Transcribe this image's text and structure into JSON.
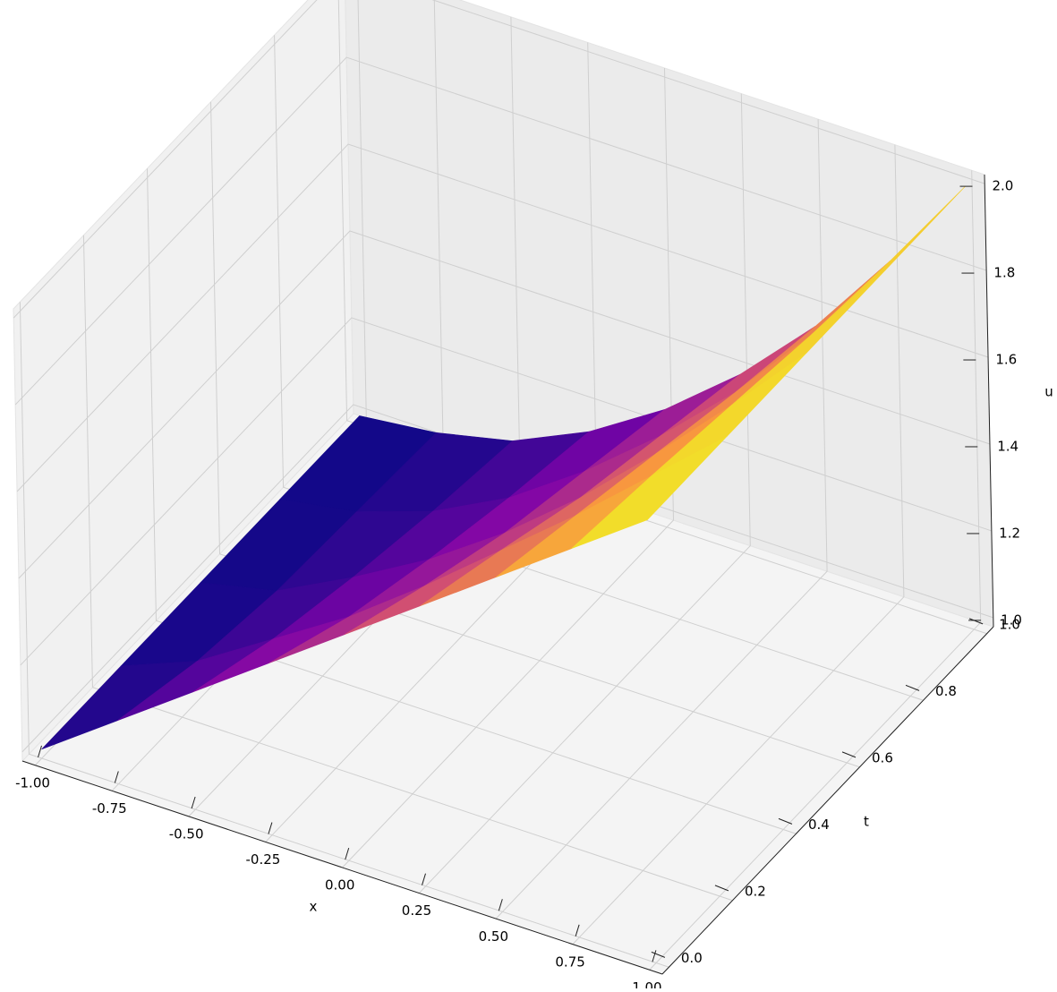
{
  "chart_data": {
    "type": "surface",
    "xlabel": "x",
    "ylabel": "t",
    "zlabel": "u",
    "x": [
      -1,
      -0.75,
      -0.5,
      -0.25,
      0,
      0.25,
      0.5,
      0.75,
      1
    ],
    "t": [
      0,
      0.25,
      0.5,
      0.75,
      1
    ],
    "values": [
      [
        1,
        1.125,
        1.25,
        1.375,
        1.5,
        1.625,
        1.75,
        1.875,
        2
      ],
      [
        1,
        1.07,
        1.18,
        1.29,
        1.42,
        1.56,
        1.7,
        1.85,
        2
      ],
      [
        1,
        1.04,
        1.13,
        1.23,
        1.35,
        1.49,
        1.65,
        1.82,
        2
      ],
      [
        1,
        1.03,
        1.09,
        1.18,
        1.3,
        1.44,
        1.6,
        1.79,
        2
      ],
      [
        1,
        1.02,
        1.06,
        1.14,
        1.25,
        1.39,
        1.56,
        1.77,
        2
      ]
    ],
    "colormap": [
      "#0d0887",
      "#7e03a8",
      "#cc4778",
      "#f89540",
      "#f0f921"
    ],
    "xlim": [
      -1,
      1
    ],
    "ylim": [
      0,
      1
    ],
    "zlim": [
      1,
      2
    ],
    "xticks": [
      {
        "value": -1,
        "label": "-1.00"
      },
      {
        "value": -0.75,
        "label": "-0.75"
      },
      {
        "value": -0.5,
        "label": "-0.50"
      },
      {
        "value": -0.25,
        "label": "-0.25"
      },
      {
        "value": 0,
        "label": "0.00"
      },
      {
        "value": 0.25,
        "label": "0.25"
      },
      {
        "value": 0.5,
        "label": "0.50"
      },
      {
        "value": 0.75,
        "label": "0.75"
      },
      {
        "value": 1,
        "label": "1.00"
      }
    ],
    "yticks": [
      {
        "value": 0,
        "label": "0.0"
      },
      0.2,
      0.4,
      0.6,
      0.8,
      {
        "value": 1,
        "label": "1.0"
      }
    ],
    "zticks": [
      {
        "value": 1,
        "label": "1.0"
      },
      1.2,
      1.4,
      1.6,
      1.8,
      {
        "value": 2,
        "label": "2.0"
      }
    ],
    "grid": true
  }
}
